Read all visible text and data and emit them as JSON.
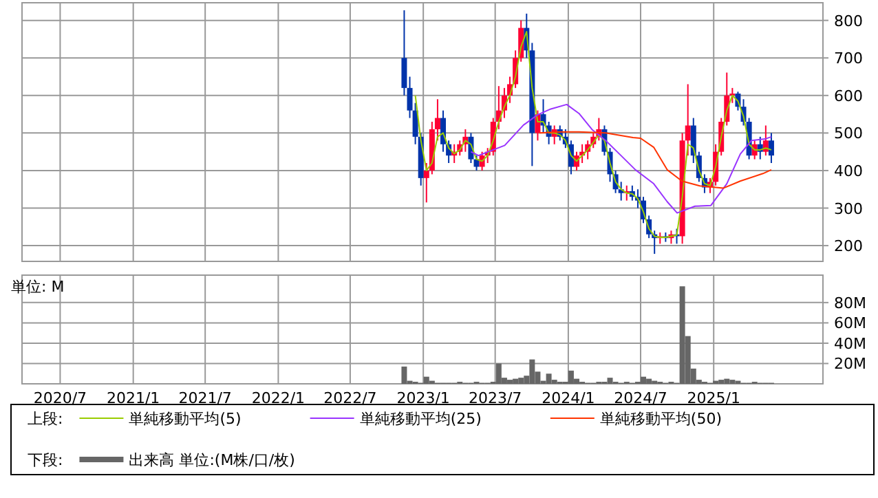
{
  "chart_data": [
    {
      "type": "candlestick",
      "legend_title": "上段:",
      "legend": "bottom",
      "tick_labels": "y",
      "grid": true,
      "xlim": [
        "2020-03-27",
        "2025-10-03"
      ],
      "xticks": [
        {
          "value": "2020-07",
          "label": null
        },
        {
          "value": "2021-01",
          "label": null
        },
        {
          "value": "2021-07",
          "label": null
        },
        {
          "value": "2022-01",
          "label": null
        },
        {
          "value": "2022-07",
          "label": null
        },
        {
          "value": "2023-01",
          "label": null
        },
        {
          "value": "2023-07",
          "label": null
        },
        {
          "value": "2024-01",
          "label": null
        },
        {
          "value": "2024-07",
          "label": null
        },
        {
          "value": "2025-01",
          "label": null
        }
      ],
      "ylim": [
        158,
        847
      ],
      "yticks": [
        200,
        300,
        400,
        500,
        600,
        700,
        800
      ],
      "x": [
        "2022-11-14",
        "2022-11-28",
        "2022-12-12",
        "2022-12-26",
        "2023-01-09",
        "2023-01-23",
        "2023-02-06",
        "2023-02-20",
        "2023-03-06",
        "2023-03-20",
        "2023-04-03",
        "2023-04-17",
        "2023-05-01",
        "2023-05-15",
        "2023-05-29",
        "2023-06-12",
        "2023-06-26",
        "2023-07-10",
        "2023-07-24",
        "2023-08-07",
        "2023-08-21",
        "2023-09-04",
        "2023-09-18",
        "2023-10-02",
        "2023-10-16",
        "2023-10-30",
        "2023-11-13",
        "2023-11-27",
        "2023-12-11",
        "2023-12-25",
        "2024-01-08",
        "2024-01-22",
        "2024-02-05",
        "2024-02-19",
        "2024-03-04",
        "2024-03-18",
        "2024-04-01",
        "2024-04-15",
        "2024-04-29",
        "2024-05-13",
        "2024-05-27",
        "2024-06-10",
        "2024-06-24",
        "2024-07-08",
        "2024-07-22",
        "2024-08-05",
        "2024-08-19",
        "2024-09-02",
        "2024-09-16",
        "2024-09-30",
        "2024-10-14",
        "2024-10-28",
        "2024-11-11",
        "2024-11-25",
        "2024-12-09",
        "2024-12-23",
        "2025-01-06",
        "2025-01-20",
        "2025-02-03",
        "2025-02-17",
        "2025-03-03",
        "2025-03-17",
        "2025-03-31",
        "2025-04-14",
        "2025-04-28",
        "2025-05-12",
        "2025-05-26"
      ],
      "ohlc": [
        [
          700,
          827,
          600,
          620
        ],
        [
          620,
          650,
          540,
          560
        ],
        [
          560,
          580,
          470,
          490
        ],
        [
          490,
          500,
          360,
          380
        ],
        [
          380,
          420,
          315,
          400
        ],
        [
          400,
          530,
          390,
          510
        ],
        [
          510,
          590,
          480,
          540
        ],
        [
          540,
          560,
          450,
          470
        ],
        [
          470,
          480,
          420,
          440
        ],
        [
          440,
          470,
          420,
          450
        ],
        [
          450,
          480,
          440,
          470
        ],
        [
          470,
          510,
          450,
          490
        ],
        [
          490,
          500,
          420,
          430
        ],
        [
          430,
          440,
          400,
          410
        ],
        [
          410,
          450,
          400,
          440
        ],
        [
          440,
          460,
          420,
          450
        ],
        [
          450,
          540,
          440,
          530
        ],
        [
          530,
          625,
          510,
          560
        ],
        [
          560,
          620,
          540,
          600
        ],
        [
          600,
          650,
          580,
          630
        ],
        [
          630,
          720,
          620,
          700
        ],
        [
          700,
          800,
          690,
          780
        ],
        [
          780,
          818,
          700,
          720
        ],
        [
          720,
          740,
          412,
          500
        ],
        [
          500,
          560,
          480,
          550
        ],
        [
          550,
          590,
          500,
          520
        ],
        [
          520,
          530,
          470,
          490
        ],
        [
          490,
          520,
          470,
          510
        ],
        [
          510,
          520,
          480,
          490
        ],
        [
          490,
          510,
          460,
          470
        ],
        [
          470,
          480,
          390,
          410
        ],
        [
          410,
          450,
          400,
          440
        ],
        [
          440,
          470,
          420,
          450
        ],
        [
          450,
          480,
          430,
          470
        ],
        [
          470,
          500,
          460,
          490
        ],
        [
          490,
          540,
          480,
          510
        ],
        [
          510,
          520,
          440,
          450
        ],
        [
          450,
          460,
          370,
          390
        ],
        [
          390,
          400,
          340,
          350
        ],
        [
          350,
          370,
          320,
          340
        ],
        [
          340,
          360,
          320,
          345
        ],
        [
          345,
          360,
          320,
          330
        ],
        [
          330,
          350,
          300,
          320
        ],
        [
          320,
          330,
          260,
          270
        ],
        [
          270,
          280,
          220,
          230
        ],
        [
          230,
          240,
          178,
          220
        ],
        [
          220,
          235,
          205,
          225
        ],
        [
          225,
          235,
          210,
          220
        ],
        [
          220,
          240,
          205,
          230
        ],
        [
          230,
          245,
          205,
          225
        ],
        [
          225,
          500,
          205,
          480
        ],
        [
          480,
          630,
          440,
          520
        ],
        [
          520,
          540,
          420,
          440
        ],
        [
          440,
          450,
          370,
          380
        ],
        [
          380,
          390,
          340,
          355
        ],
        [
          355,
          380,
          340,
          370
        ],
        [
          370,
          470,
          360,
          450
        ],
        [
          450,
          540,
          440,
          530
        ],
        [
          530,
          661,
          520,
          600
        ],
        [
          600,
          620,
          580,
          605
        ],
        [
          605,
          610,
          560,
          570
        ],
        [
          570,
          590,
          520,
          530
        ],
        [
          530,
          540,
          430,
          440
        ],
        [
          440,
          480,
          430,
          470
        ],
        [
          470,
          490,
          430,
          450
        ],
        [
          450,
          520,
          440,
          480
        ],
        [
          480,
          500,
          420,
          440
        ]
      ],
      "colors": [
        "#0033aa",
        "#0033aa",
        "#0033aa",
        "#0033aa",
        "#ff0033",
        "#ff0033",
        "#ff0033",
        "#0033aa",
        "#0033aa",
        "#ff0033",
        "#ff0033",
        "#ff0033",
        "#0033aa",
        "#0033aa",
        "#ff0033",
        "#ff0033",
        "#ff0033",
        "#ff0033",
        "#ff0033",
        "#ff0033",
        "#ff0033",
        "#ff0033",
        "#0033aa",
        "#0033aa",
        "#ff0033",
        "#0033aa",
        "#0033aa",
        "#ff0033",
        "#0033aa",
        "#0033aa",
        "#0033aa",
        "#ff0033",
        "#ff0033",
        "#ff0033",
        "#ff0033",
        "#ff0033",
        "#0033aa",
        "#0033aa",
        "#0033aa",
        "#0033aa",
        "#ff0033",
        "#0033aa",
        "#0033aa",
        "#0033aa",
        "#0033aa",
        "#0033aa",
        "#ff0033",
        "#0033aa",
        "#ff0033",
        "#0033aa",
        "#ff0033",
        "#ff0033",
        "#0033aa",
        "#0033aa",
        "#0033aa",
        "#ff0033",
        "#ff0033",
        "#ff0033",
        "#ff0033",
        "#ff0033",
        "#0033aa",
        "#0033aa",
        "#0033aa",
        "#ff0033",
        "#0033aa",
        "#ff0033",
        "#0033aa"
      ],
      "series": [
        {
          "type": "line",
          "name": "単純移動平均(5)",
          "color": "#99cc00",
          "values": [
            null,
            null,
            600,
            480,
            400,
            420,
            490,
            500,
            460,
            445,
            455,
            480,
            470,
            430,
            425,
            440,
            480,
            530,
            570,
            600,
            650,
            730,
            770,
            620,
            530,
            530,
            500,
            500,
            495,
            480,
            440,
            425,
            440,
            455,
            475,
            495,
            480,
            420,
            370,
            350,
            340,
            338,
            325,
            290,
            245,
            225,
            222,
            222,
            225,
            228,
            330,
            470,
            460,
            400,
            365,
            360,
            410,
            490,
            560,
            600,
            585,
            545,
            470,
            455,
            455,
            460,
            455
          ]
        },
        {
          "type": "line",
          "name": "単純移動平均(25)",
          "color": "#9933ff",
          "x": [
            "2023-05-01",
            "2023-05-20",
            "2023-07-25",
            "2023-09-10",
            "2023-10-15",
            "2023-11-18",
            "2023-12-28",
            "2024-01-28",
            "2024-03-01",
            "2024-04-04",
            "2024-05-03",
            "2024-06-18",
            "2024-08-03",
            "2024-09-06",
            "2024-10-01",
            "2024-11-15",
            "2024-12-25",
            "2025-02-03",
            "2025-03-09",
            "2025-04-06",
            "2025-05-10",
            "2025-05-26"
          ],
          "values": [
            450,
            440,
            467,
            521,
            548,
            564,
            576,
            552,
            509,
            480,
            450,
            402,
            365,
            317,
            287,
            305,
            307,
            365,
            444,
            480,
            484,
            490
          ]
        },
        {
          "type": "line",
          "name": "単純移動平均(50)",
          "color": "#ff3300",
          "x": [
            "2023-10-20",
            "2023-12-12",
            "2024-01-28",
            "2024-04-04",
            "2024-06-12",
            "2024-07-01",
            "2024-08-03",
            "2024-09-06",
            "2024-10-13",
            "2024-11-27",
            "2025-01-25",
            "2025-03-09",
            "2025-05-05",
            "2025-05-26"
          ],
          "values": [
            500,
            503,
            503,
            500,
            488,
            486,
            462,
            402,
            372,
            359,
            353,
            372,
            392,
            402
          ]
        }
      ]
    },
    {
      "type": "bar",
      "legend_title": "下段:",
      "legend": "bottom",
      "grid": true,
      "annotations": [
        "単位: M"
      ],
      "xlim": [
        "2020-03-27",
        "2025-10-03"
      ],
      "xticks": [
        {
          "value": "2020-07",
          "label": "2020/7"
        },
        {
          "value": "2021-01",
          "label": "2021/1"
        },
        {
          "value": "2021-07",
          "label": "2021/7"
        },
        {
          "value": "2022-01",
          "label": "2022/1"
        },
        {
          "value": "2022-07",
          "label": "2022/7"
        },
        {
          "value": "2023-01",
          "label": "2023/1"
        },
        {
          "value": "2023-07",
          "label": "2023/7"
        },
        {
          "value": "2024-01",
          "label": "2024/1"
        },
        {
          "value": "2024-07",
          "label": "2024/7"
        },
        {
          "value": "2025-01",
          "label": "2025/1"
        }
      ],
      "ylim": [
        0,
        107
      ],
      "yticks": [
        {
          "value": 20,
          "label": "20M"
        },
        {
          "value": 40,
          "label": "40M"
        },
        {
          "value": 60,
          "label": "60M"
        },
        {
          "value": 80,
          "label": "80M"
        }
      ],
      "x": [
        "2022-11-14",
        "2022-11-28",
        "2022-12-12",
        "2022-12-26",
        "2023-01-09",
        "2023-01-23",
        "2023-02-06",
        "2023-02-20",
        "2023-03-06",
        "2023-03-20",
        "2023-04-03",
        "2023-04-17",
        "2023-05-01",
        "2023-05-15",
        "2023-05-29",
        "2023-06-12",
        "2023-06-26",
        "2023-07-10",
        "2023-07-24",
        "2023-08-07",
        "2023-08-21",
        "2023-09-04",
        "2023-09-18",
        "2023-10-02",
        "2023-10-16",
        "2023-10-30",
        "2023-11-13",
        "2023-11-27",
        "2023-12-11",
        "2023-12-25",
        "2024-01-08",
        "2024-01-22",
        "2024-02-05",
        "2024-02-19",
        "2024-03-04",
        "2024-03-18",
        "2024-04-01",
        "2024-04-15",
        "2024-04-29",
        "2024-05-13",
        "2024-05-27",
        "2024-06-10",
        "2024-06-24",
        "2024-07-08",
        "2024-07-22",
        "2024-08-05",
        "2024-08-19",
        "2024-09-02",
        "2024-09-16",
        "2024-09-30",
        "2024-10-14",
        "2024-10-28",
        "2024-11-11",
        "2024-11-25",
        "2024-12-09",
        "2024-12-23",
        "2025-01-06",
        "2025-01-20",
        "2025-02-03",
        "2025-02-17",
        "2025-03-03",
        "2025-03-17",
        "2025-03-31",
        "2025-04-14",
        "2025-04-28",
        "2025-05-12",
        "2025-05-26"
      ],
      "series": [
        {
          "name": "出来高 単位:(M株/口/枚)",
          "color": "#666666",
          "values": [
            17,
            3,
            2,
            1,
            7,
            3,
            1,
            1,
            1,
            1,
            2,
            1,
            1,
            2,
            1,
            1,
            2,
            20,
            6,
            4,
            5,
            6,
            8,
            24,
            12,
            3,
            10,
            4,
            2,
            2,
            13,
            5,
            2,
            1,
            1,
            2,
            2,
            6,
            2,
            1,
            2,
            1,
            2,
            7,
            5,
            3,
            2,
            1,
            2,
            1,
            96,
            47,
            15,
            4,
            2,
            1,
            3,
            4,
            5,
            4,
            3,
            1,
            1,
            2,
            1,
            1,
            1
          ]
        }
      ]
    }
  ]
}
